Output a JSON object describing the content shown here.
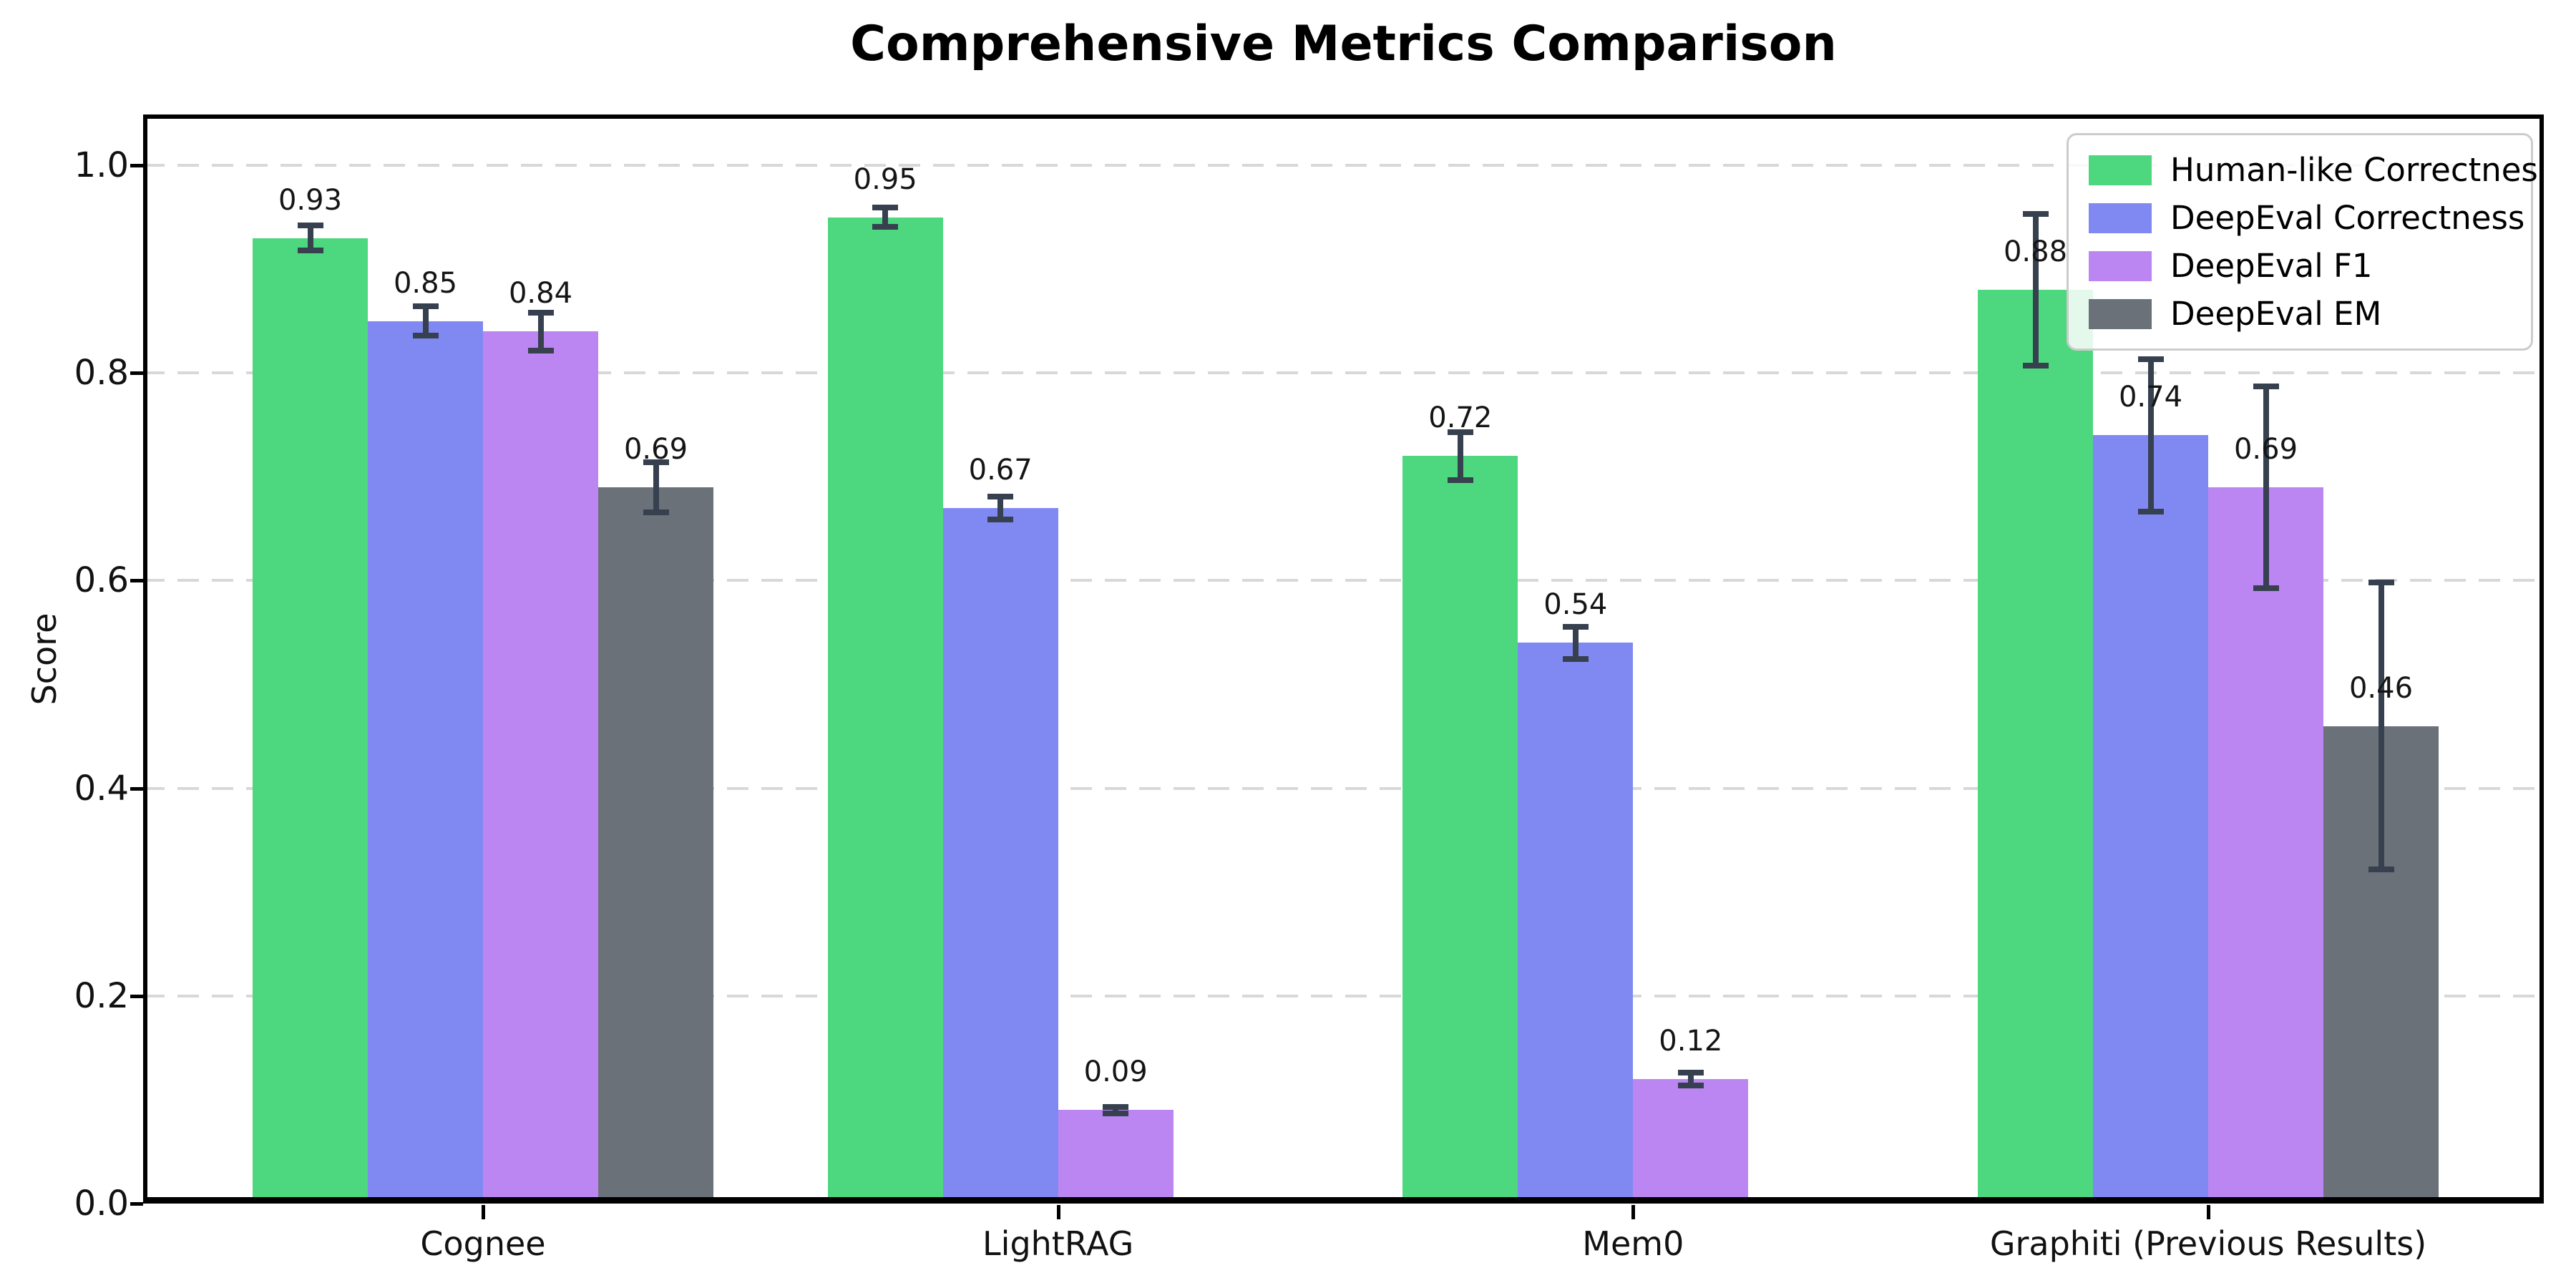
{
  "title": "Comprehensive Metrics Comparison",
  "ylabel": "Score",
  "chart_data": {
    "type": "bar",
    "categories": [
      "Cognee",
      "LightRAG",
      "Mem0",
      "Graphiti (Previous Results)"
    ],
    "series": [
      {
        "name": "Human-like Correctness",
        "color": "#4dd880",
        "values": [
          0.93,
          0.95,
          0.72,
          0.88
        ],
        "errors": [
          0.015,
          0.012,
          0.026,
          0.076
        ]
      },
      {
        "name": "DeepEval Correctness",
        "color": "#8089f2",
        "values": [
          0.85,
          0.67,
          0.54,
          0.74
        ],
        "errors": [
          0.017,
          0.014,
          0.018,
          0.076
        ]
      },
      {
        "name": "DeepEval F1",
        "color": "#bc86f2",
        "values": [
          0.84,
          0.09,
          0.12,
          0.69
        ],
        "errors": [
          0.021,
          0.006,
          0.009,
          0.1
        ]
      },
      {
        "name": "DeepEval EM",
        "color": "#6a7179",
        "values": [
          0.69,
          0.0,
          0.0,
          0.46
        ],
        "errors": [
          0.027,
          0.004,
          0.004,
          0.141
        ]
      }
    ],
    "yticks": [
      0.0,
      0.2,
      0.4,
      0.6,
      0.8,
      1.0
    ],
    "ytick_labels": [
      "0.0",
      "0.2",
      "0.4",
      "0.6",
      "0.8",
      "1.0"
    ],
    "ylim": [
      0,
      1.049
    ],
    "grid": "horizontal-dashed",
    "grid_color": "#d8d8d8",
    "error_bar_color": "#36404f",
    "spine_color": "#000000",
    "legend_position": "upper right",
    "bar_label_format": "%.2f",
    "bar_label_offset": 0.02,
    "zero_bars_unlabeled": true
  }
}
